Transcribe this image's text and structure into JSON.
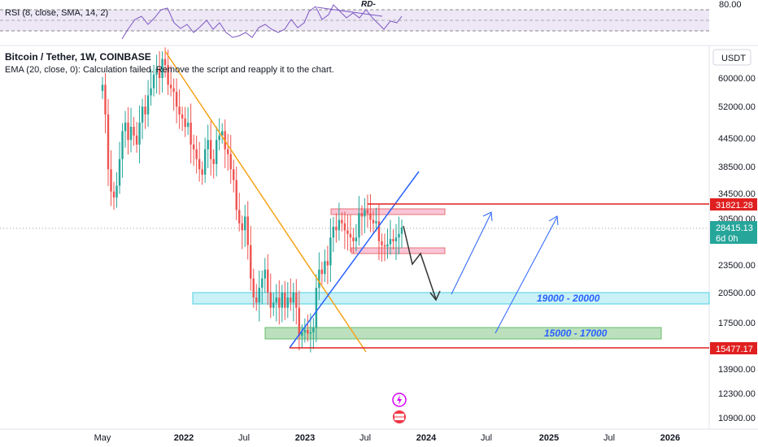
{
  "header": {
    "title": "Bitcoin / Tether, 1W, COINBASE",
    "ema_text": "EMA (20, close, 0): Calculation failed. Remove the script and reapply it to the chart."
  },
  "rsi": {
    "label": "RSI (8, close, SMA, 14, 2)",
    "level_label": "80.00",
    "annotation": "RD-"
  },
  "currency": "USDT",
  "colors": {
    "candle_up": "#26a69a",
    "candle_down": "#ef5350",
    "trend_down": "#f7a21b",
    "trend_up": "#2962ff",
    "resistance": "#e02020",
    "zone_cyan": "#b2ebf2",
    "zone_green": "#a5d6a7",
    "zone_pink": "#f8bbd0",
    "current_price_bg": "#26a69a",
    "marker_bg": "#f23645"
  },
  "chart_data": {
    "type": "candlestick",
    "y_ticks": [
      "60000.00",
      "52000.00",
      "44500.00",
      "38500.00",
      "34500.00",
      "30500.00",
      "23500.00",
      "20500.00",
      "17500.00",
      "13900.00",
      "12300.00",
      "10900.00"
    ],
    "x_ticks": [
      "May",
      "2022",
      "Jul",
      "2023",
      "Jul",
      "2024",
      "Jul",
      "2025",
      "Jul",
      "2026"
    ],
    "price_markers": {
      "resistance": "31821.28",
      "current": "28415.13",
      "countdown": "6d 0h",
      "support": "15477.17"
    },
    "zones": [
      {
        "label": "19000 - 20000",
        "low": 19000,
        "high": 20000
      },
      {
        "label": "15000 - 17000",
        "low": 15000,
        "high": 17000
      }
    ],
    "closes": [
      58000,
      50000,
      38000,
      34000,
      33000,
      35000,
      40000,
      46000,
      48000,
      44000,
      47000,
      45000,
      43000,
      48000,
      52000,
      50000,
      55000,
      57000,
      61000,
      63000,
      60000,
      66000,
      64000,
      58000,
      57000,
      56000,
      52000,
      50000,
      49000,
      47000,
      48000,
      43000,
      42000,
      40000,
      38000,
      37000,
      42000,
      44000,
      40000,
      39000,
      44000,
      45000,
      46000,
      42000,
      41000,
      38000,
      36000,
      31000,
      29000,
      28000,
      30000,
      26000,
      22000,
      20000,
      19500,
      21000,
      22000,
      23000,
      20500,
      19000,
      19500,
      20000,
      19000,
      20500,
      19000,
      20000,
      19500,
      20500,
      19000,
      16500,
      16800,
      17000,
      16700,
      16800,
      17200,
      21000,
      23000,
      22500,
      24000,
      23500,
      27000,
      28500,
      28000,
      29500,
      29000,
      28000,
      27500,
      27000,
      26500,
      27000,
      30500,
      30000,
      31000,
      30500,
      29500,
      29000,
      29300,
      26500,
      26000,
      25800,
      26100,
      26800,
      26500,
      27000,
      27500,
      28415
    ]
  }
}
